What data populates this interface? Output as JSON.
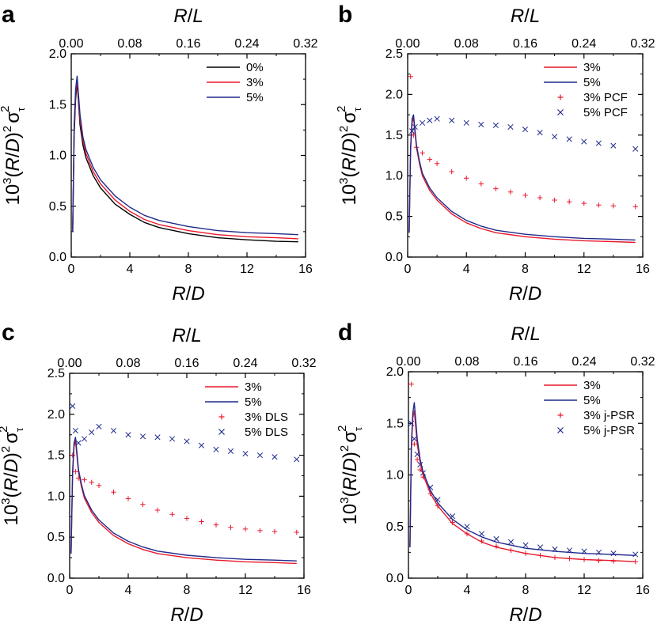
{
  "figure": {
    "series_colors": {
      "0%": "#000000",
      "3%": "#e8192c",
      "5%": "#1f2a8c"
    }
  },
  "chart_data": [
    {
      "panel": "a",
      "type": "line",
      "xlabel": "R/D",
      "top_xlabel": "R/L",
      "ylabel": "10^3(R/D)^2 σ_τ^2",
      "xlim": [
        0,
        16
      ],
      "xticks": [
        "0",
        "4",
        "8",
        "12",
        "16"
      ],
      "top_xlim": [
        0,
        0.32
      ],
      "top_xticks": [
        "0.00",
        "0.08",
        "0.16",
        "0.24",
        "0.32"
      ],
      "ylim": [
        0,
        2.0
      ],
      "yticks": [
        "0.0",
        "0.5",
        "1.0",
        "1.5",
        "2.0"
      ],
      "series": [
        {
          "name": "0%",
          "style": "line",
          "color": "#000000",
          "x": [
            0.1,
            0.2,
            0.3,
            0.4,
            0.6,
            0.8,
            1,
            1.5,
            2,
            3,
            4,
            5,
            6,
            8,
            10,
            12,
            14,
            15.5
          ],
          "y": [
            0.25,
            1.2,
            1.55,
            1.72,
            1.3,
            1.1,
            0.98,
            0.8,
            0.68,
            0.52,
            0.42,
            0.34,
            0.29,
            0.23,
            0.19,
            0.17,
            0.155,
            0.15
          ]
        },
        {
          "name": "3%",
          "style": "line",
          "color": "#e8192c",
          "x": [
            0.1,
            0.2,
            0.3,
            0.4,
            0.6,
            0.8,
            1,
            1.5,
            2,
            3,
            4,
            5,
            6,
            8,
            10,
            12,
            14,
            15.5
          ],
          "y": [
            0.25,
            1.25,
            1.6,
            1.75,
            1.35,
            1.15,
            1.02,
            0.84,
            0.72,
            0.56,
            0.45,
            0.37,
            0.32,
            0.26,
            0.22,
            0.2,
            0.19,
            0.18
          ]
        },
        {
          "name": "5%",
          "style": "line",
          "color": "#1f2a8c",
          "x": [
            0.1,
            0.2,
            0.3,
            0.4,
            0.6,
            0.8,
            1,
            1.5,
            2,
            3,
            4,
            5,
            6,
            8,
            10,
            12,
            14,
            15.5
          ],
          "y": [
            0.25,
            1.3,
            1.65,
            1.78,
            1.4,
            1.18,
            1.06,
            0.88,
            0.76,
            0.6,
            0.49,
            0.41,
            0.36,
            0.3,
            0.26,
            0.24,
            0.23,
            0.22
          ]
        }
      ]
    },
    {
      "panel": "b",
      "type": "line",
      "xlabel": "R/D",
      "top_xlabel": "R/L",
      "ylabel": "10^3(R/D)^2 σ_τ^2",
      "xlim": [
        0,
        16
      ],
      "xticks": [
        "0",
        "4",
        "8",
        "12",
        "16"
      ],
      "top_xlim": [
        0,
        0.32
      ],
      "top_xticks": [
        "0.00",
        "0.08",
        "0.16",
        "0.24",
        "0.32"
      ],
      "ylim": [
        0,
        2.5
      ],
      "yticks": [
        "0.0",
        "0.5",
        "1.0",
        "1.5",
        "2.0",
        "2.5"
      ],
      "series": [
        {
          "name": "3%",
          "style": "line",
          "color": "#e8192c",
          "x": [
            0.1,
            0.2,
            0.3,
            0.4,
            0.6,
            0.8,
            1,
            1.5,
            2,
            3,
            4,
            5,
            6,
            8,
            10,
            12,
            14,
            15.5
          ],
          "y": [
            0.3,
            1.3,
            1.65,
            1.72,
            1.35,
            1.15,
            1.0,
            0.82,
            0.7,
            0.53,
            0.42,
            0.35,
            0.3,
            0.25,
            0.22,
            0.2,
            0.19,
            0.18
          ]
        },
        {
          "name": "5%",
          "style": "line",
          "color": "#1f2a8c",
          "x": [
            0.1,
            0.2,
            0.3,
            0.4,
            0.6,
            0.8,
            1,
            1.5,
            2,
            3,
            4,
            5,
            6,
            8,
            10,
            12,
            14,
            15.5
          ],
          "y": [
            0.3,
            1.35,
            1.7,
            1.75,
            1.38,
            1.18,
            1.03,
            0.85,
            0.73,
            0.56,
            0.45,
            0.38,
            0.33,
            0.28,
            0.25,
            0.23,
            0.22,
            0.21
          ]
        },
        {
          "name": "3% PCF",
          "style": "plus",
          "color": "#e8192c",
          "x": [
            0.2,
            0.4,
            0.6,
            1,
            1.5,
            2,
            3,
            4,
            5,
            6,
            7,
            8,
            9,
            10,
            11,
            12,
            13,
            14,
            15.5
          ],
          "y": [
            2.22,
            1.5,
            1.35,
            1.28,
            1.2,
            1.15,
            1.05,
            0.97,
            0.9,
            0.84,
            0.8,
            0.76,
            0.73,
            0.7,
            0.68,
            0.66,
            0.64,
            0.63,
            0.62
          ]
        },
        {
          "name": "5% PCF",
          "style": "cross",
          "color": "#1f2a8c",
          "x": [
            0.3,
            0.5,
            1,
            1.5,
            2,
            3,
            4,
            5,
            6,
            7,
            8,
            9,
            10,
            11,
            12,
            13,
            14,
            15.5
          ],
          "y": [
            1.55,
            1.6,
            1.65,
            1.68,
            1.7,
            1.68,
            1.65,
            1.63,
            1.62,
            1.6,
            1.57,
            1.53,
            1.48,
            1.45,
            1.42,
            1.4,
            1.37,
            1.33
          ]
        }
      ]
    },
    {
      "panel": "c",
      "type": "line",
      "xlabel": "R/D",
      "top_xlabel": "R/L",
      "ylabel": "10^3(R/D)^2 σ_τ^2",
      "xlim": [
        0,
        16
      ],
      "xticks": [
        "0",
        "4",
        "8",
        "12",
        "16"
      ],
      "top_xlim": [
        0,
        0.32
      ],
      "top_xticks": [
        "0.00",
        "0.08",
        "0.16",
        "0.24",
        "0.32"
      ],
      "ylim": [
        0,
        2.5
      ],
      "yticks": [
        "0.0",
        "0.5",
        "1.0",
        "1.5",
        "2.0",
        "2.5"
      ],
      "series": [
        {
          "name": "3%",
          "style": "line",
          "color": "#e8192c",
          "x": [
            0.1,
            0.2,
            0.3,
            0.4,
            0.6,
            0.8,
            1,
            1.5,
            2,
            3,
            4,
            5,
            6,
            8,
            10,
            12,
            14,
            15.5
          ],
          "y": [
            0.3,
            1.25,
            1.6,
            1.68,
            1.3,
            1.12,
            0.98,
            0.8,
            0.68,
            0.52,
            0.42,
            0.35,
            0.3,
            0.25,
            0.22,
            0.2,
            0.19,
            0.18
          ]
        },
        {
          "name": "5%",
          "style": "line",
          "color": "#1f2a8c",
          "x": [
            0.1,
            0.2,
            0.3,
            0.4,
            0.6,
            0.8,
            1,
            1.5,
            2,
            3,
            4,
            5,
            6,
            8,
            10,
            12,
            14,
            15.5
          ],
          "y": [
            0.3,
            1.3,
            1.65,
            1.72,
            1.33,
            1.15,
            1.01,
            0.83,
            0.71,
            0.55,
            0.45,
            0.38,
            0.33,
            0.28,
            0.25,
            0.23,
            0.22,
            0.21
          ]
        },
        {
          "name": "3% DLS",
          "style": "plus",
          "color": "#e8192c",
          "x": [
            0.2,
            0.4,
            0.6,
            1,
            1.5,
            2,
            3,
            4,
            5,
            6,
            7,
            8,
            9,
            10,
            11,
            12,
            13,
            14,
            15.5
          ],
          "y": [
            1.5,
            1.3,
            1.22,
            1.2,
            1.17,
            1.13,
            1.05,
            0.97,
            0.9,
            0.83,
            0.78,
            0.73,
            0.69,
            0.65,
            0.62,
            0.6,
            0.58,
            0.57,
            0.56
          ]
        },
        {
          "name": "5% DLS",
          "style": "cross",
          "color": "#1f2a8c",
          "x": [
            0.2,
            0.4,
            0.6,
            1,
            1.5,
            2,
            3,
            4,
            5,
            6,
            7,
            8,
            9,
            10,
            11,
            12,
            13,
            14,
            15.5
          ],
          "y": [
            2.1,
            1.8,
            1.65,
            1.7,
            1.78,
            1.85,
            1.8,
            1.75,
            1.73,
            1.72,
            1.7,
            1.67,
            1.62,
            1.57,
            1.55,
            1.52,
            1.5,
            1.48,
            1.45
          ]
        }
      ]
    },
    {
      "panel": "d",
      "type": "line",
      "xlabel": "R/D",
      "top_xlabel": "R/L",
      "ylabel": "10^3(R/D)^2 σ_τ^2",
      "xlim": [
        0,
        16
      ],
      "xticks": [
        "0",
        "4",
        "8",
        "12",
        "16"
      ],
      "top_xlim": [
        0,
        0.32
      ],
      "top_xticks": [
        "0.00",
        "0.08",
        "0.16",
        "0.24",
        "0.32"
      ],
      "ylim": [
        0,
        2.0
      ],
      "yticks": [
        "0.0",
        "0.5",
        "1.0",
        "1.5",
        "2.0"
      ],
      "series": [
        {
          "name": "3%",
          "style": "line",
          "color": "#e8192c",
          "x": [
            0.1,
            0.2,
            0.3,
            0.4,
            0.6,
            0.8,
            1,
            1.5,
            2,
            3,
            4,
            5,
            6,
            8,
            10,
            12,
            14,
            15.5
          ],
          "y": [
            0.3,
            1.25,
            1.55,
            1.62,
            1.3,
            1.12,
            1.0,
            0.82,
            0.7,
            0.53,
            0.43,
            0.35,
            0.3,
            0.24,
            0.2,
            0.18,
            0.17,
            0.16
          ]
        },
        {
          "name": "5%",
          "style": "line",
          "color": "#1f2a8c",
          "x": [
            0.1,
            0.2,
            0.3,
            0.4,
            0.6,
            0.8,
            1,
            1.5,
            2,
            3,
            4,
            5,
            6,
            8,
            10,
            12,
            14,
            15.5
          ],
          "y": [
            0.3,
            1.3,
            1.6,
            1.7,
            1.35,
            1.15,
            1.03,
            0.85,
            0.73,
            0.57,
            0.47,
            0.4,
            0.35,
            0.29,
            0.26,
            0.24,
            0.23,
            0.22
          ]
        },
        {
          "name": "3% j-PSR",
          "style": "plus",
          "color": "#e8192c",
          "x": [
            0.2,
            0.4,
            0.6,
            0.8,
            1,
            1.5,
            2,
            3,
            4,
            5,
            6,
            7,
            8,
            9,
            10,
            11,
            12,
            13,
            14,
            15.5
          ],
          "y": [
            1.88,
            1.3,
            1.15,
            1.05,
            0.98,
            0.82,
            0.7,
            0.54,
            0.43,
            0.36,
            0.31,
            0.27,
            0.24,
            0.22,
            0.2,
            0.19,
            0.18,
            0.17,
            0.165,
            0.16
          ]
        },
        {
          "name": "5% j-PSR",
          "style": "cross",
          "color": "#1f2a8c",
          "x": [
            0.2,
            0.4,
            0.6,
            0.8,
            1,
            1.5,
            2,
            3,
            4,
            5,
            6,
            7,
            8,
            9,
            10,
            11,
            12,
            13,
            14,
            15.5
          ],
          "y": [
            1.5,
            1.35,
            1.2,
            1.1,
            1.02,
            0.88,
            0.76,
            0.6,
            0.5,
            0.43,
            0.38,
            0.35,
            0.32,
            0.3,
            0.28,
            0.27,
            0.26,
            0.25,
            0.24,
            0.23
          ]
        }
      ]
    }
  ]
}
